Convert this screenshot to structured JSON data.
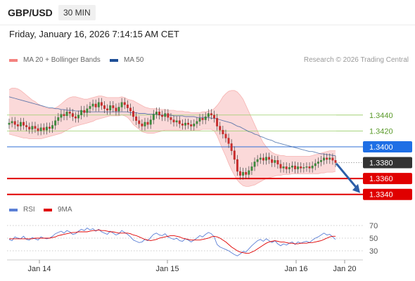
{
  "header": {
    "symbol": "GBP/USD",
    "timeframe": "30 MIN"
  },
  "timestamp": "Friday, January 16, 2026 7:14:15 AM CET",
  "legend": {
    "ma20": {
      "label": "MA 20 + Bollinger Bands",
      "color": "#f4827f"
    },
    "ma50": {
      "label": "MA 50",
      "color": "#1e4f97"
    }
  },
  "source": "Research © 2026 Trading Central",
  "rsi_legend": {
    "rsi": {
      "label": "RSI",
      "color": "#5b7fd6"
    },
    "ma9": {
      "label": "9MA",
      "color": "#e00000"
    }
  },
  "colors": {
    "up": "#3c8c3c",
    "down": "#cc2b2b",
    "wick": "#444444",
    "bb_fill": "#fbd9d9",
    "green_level": "#9ccf6c",
    "blue_level": "#2f6fd6",
    "red_level": "#e00000"
  },
  "chart_data": [
    {
      "type": "candlestick",
      "ylim": [
        1.333,
        1.35
      ],
      "x_ticks": [
        "Jan 14",
        "Jan 15",
        "Jan 16",
        "Jan 20"
      ],
      "levels": [
        {
          "value": 1.344,
          "label": "1.3440",
          "style": "green"
        },
        {
          "value": 1.342,
          "label": "1.3420",
          "style": "green"
        },
        {
          "value": 1.34,
          "label": "1.3400",
          "style": "blue"
        },
        {
          "value": 1.338,
          "label": "1.3380",
          "style": "current"
        },
        {
          "value": 1.336,
          "label": "1.3360",
          "style": "red"
        },
        {
          "value": 1.334,
          "label": "1.3340",
          "style": "red"
        }
      ],
      "close": [
        1.343,
        1.3432,
        1.3428,
        1.3426,
        1.3431,
        1.3427,
        1.3425,
        1.3422,
        1.3426,
        1.3423,
        1.342,
        1.3424,
        1.3421,
        1.3425,
        1.3423,
        1.3427,
        1.3433,
        1.3437,
        1.3441,
        1.3439,
        1.3444,
        1.3442,
        1.3438,
        1.3436,
        1.344,
        1.3446,
        1.3443,
        1.3448,
        1.3451,
        1.3454,
        1.345,
        1.3456,
        1.3452,
        1.3448,
        1.3446,
        1.3452,
        1.3449,
        1.3445,
        1.345,
        1.3456,
        1.3453,
        1.3449,
        1.3445,
        1.3438,
        1.3433,
        1.3429,
        1.3426,
        1.3431,
        1.3428,
        1.3434,
        1.3441,
        1.3444,
        1.344,
        1.3438,
        1.3442,
        1.3437,
        1.3434,
        1.3431,
        1.3433,
        1.3429,
        1.3427,
        1.343,
        1.3428,
        1.3426,
        1.3429,
        1.3432,
        1.3436,
        1.3434,
        1.3438,
        1.3442,
        1.344,
        1.3436,
        1.3426,
        1.3421,
        1.3416,
        1.3411,
        1.3404,
        1.3395,
        1.3384,
        1.3369,
        1.3364,
        1.3368,
        1.3365,
        1.337,
        1.3375,
        1.3381,
        1.3384,
        1.3386,
        1.3383,
        1.3387,
        1.3384,
        1.338,
        1.3383,
        1.3378,
        1.3373,
        1.3375,
        1.3372,
        1.3374,
        1.3376,
        1.3372,
        1.3375,
        1.3373,
        1.3374,
        1.3375,
        1.3373,
        1.3376,
        1.3379,
        1.3381,
        1.3383,
        1.3386,
        1.3384,
        1.3386,
        1.3383,
        1.338
      ],
      "bb_upper": [
        1.3472,
        1.3474,
        1.3474,
        1.3473,
        1.3471,
        1.3468,
        1.3465,
        1.3462,
        1.3459,
        1.3457,
        1.3454,
        1.3452,
        1.345,
        1.3449,
        1.3448,
        1.3448,
        1.3449,
        1.3451,
        1.3454,
        1.3457,
        1.346,
        1.3462,
        1.3463,
        1.3463,
        1.3462,
        1.3461,
        1.346,
        1.346,
        1.3461,
        1.3462,
        1.3463,
        1.3464,
        1.3464,
        1.3463,
        1.3462,
        1.3462,
        1.3462,
        1.3462,
        1.3462,
        1.3463,
        1.3462,
        1.346,
        1.3459,
        1.3458,
        1.3456,
        1.3454,
        1.3452,
        1.345,
        1.3449,
        1.3448,
        1.3448,
        1.3448,
        1.3447,
        1.3447,
        1.3447,
        1.3446,
        1.3446,
        1.3446,
        1.3445,
        1.3445,
        1.3445,
        1.3444,
        1.3444,
        1.3443,
        1.3443,
        1.3443,
        1.3443,
        1.3444,
        1.3444,
        1.3445,
        1.3446,
        1.3448,
        1.3452,
        1.3457,
        1.3463,
        1.3467,
        1.347,
        1.3471,
        1.3471,
        1.3469,
        1.3465,
        1.346,
        1.3452,
        1.3444,
        1.3436,
        1.3428,
        1.342,
        1.3412,
        1.3405,
        1.34,
        1.3396,
        1.3393,
        1.3391,
        1.339,
        1.3389,
        1.3389,
        1.3388,
        1.3388,
        1.3388,
        1.3388,
        1.3388,
        1.3388,
        1.3388,
        1.3388,
        1.3388,
        1.3389,
        1.339,
        1.3391,
        1.3392,
        1.3393,
        1.3394,
        1.3395,
        1.3395,
        1.3395
      ],
      "bb_lower": [
        1.3416,
        1.3415,
        1.3414,
        1.3413,
        1.3412,
        1.3411,
        1.3411,
        1.341,
        1.341,
        1.341,
        1.341,
        1.341,
        1.3411,
        1.3412,
        1.3413,
        1.3414,
        1.3415,
        1.3416,
        1.3417,
        1.3419,
        1.3421,
        1.3423,
        1.3425,
        1.3426,
        1.3427,
        1.3428,
        1.3429,
        1.343,
        1.3431,
        1.3432,
        1.3434,
        1.3435,
        1.3436,
        1.3437,
        1.3438,
        1.3439,
        1.3439,
        1.3439,
        1.3439,
        1.344,
        1.3439,
        1.3437,
        1.3433,
        1.3428,
        1.3425,
        1.3422,
        1.3419,
        1.3418,
        1.3417,
        1.3417,
        1.3417,
        1.3418,
        1.3419,
        1.342,
        1.3421,
        1.3421,
        1.3421,
        1.3421,
        1.3421,
        1.3421,
        1.342,
        1.342,
        1.342,
        1.342,
        1.3421,
        1.3421,
        1.3421,
        1.3422,
        1.3422,
        1.3422,
        1.3422,
        1.342,
        1.3414,
        1.3405,
        1.3396,
        1.3388,
        1.3379,
        1.3371,
        1.3364,
        1.3358,
        1.3354,
        1.3351,
        1.335,
        1.335,
        1.3351,
        1.3352,
        1.3354,
        1.3356,
        1.3358,
        1.336,
        1.3361,
        1.3362,
        1.3363,
        1.3364,
        1.3364,
        1.3365,
        1.3365,
        1.3365,
        1.3366,
        1.3366,
        1.3366,
        1.3366,
        1.3366,
        1.3366,
        1.3366,
        1.3366,
        1.3366,
        1.3366,
        1.3367,
        1.3367,
        1.3368,
        1.3368,
        1.3368,
        1.3369
      ],
      "ma50": [
        1.3463,
        1.3462,
        1.3461,
        1.346,
        1.3459,
        1.3458,
        1.3457,
        1.3456,
        1.3455,
        1.3454,
        1.3453,
        1.3452,
        1.3451,
        1.345,
        1.3449,
        1.3449,
        1.3448,
        1.3448,
        1.3447,
        1.3447,
        1.3446,
        1.3446,
        1.3446,
        1.3445,
        1.3445,
        1.3445,
        1.3444,
        1.3444,
        1.3444,
        1.3444,
        1.3444,
        1.3444,
        1.3444,
        1.3444,
        1.3444,
        1.3444,
        1.3444,
        1.3444,
        1.3444,
        1.3444,
        1.3444,
        1.3444,
        1.3443,
        1.3443,
        1.3443,
        1.3442,
        1.3442,
        1.3442,
        1.3441,
        1.3441,
        1.3441,
        1.3441,
        1.344,
        1.344,
        1.344,
        1.344,
        1.344,
        1.3439,
        1.3439,
        1.3439,
        1.3439,
        1.3438,
        1.3438,
        1.3438,
        1.3438,
        1.3437,
        1.3437,
        1.3437,
        1.3437,
        1.3437,
        1.3436,
        1.3436,
        1.3435,
        1.3434,
        1.3433,
        1.3432,
        1.3431,
        1.343,
        1.3428,
        1.3426,
        1.3425,
        1.3423,
        1.3421,
        1.3419,
        1.3418,
        1.3416,
        1.3415,
        1.3413,
        1.3412,
        1.341,
        1.3409,
        1.3408,
        1.3406,
        1.3405,
        1.3404,
        1.3403,
        1.3402,
        1.3401,
        1.34,
        1.3399,
        1.3398,
        1.3397,
        1.3396,
        1.3395,
        1.3394,
        1.3394,
        1.3393,
        1.3392,
        1.3391,
        1.3391,
        1.339,
        1.339,
        1.3389,
        1.3389
      ],
      "forecast": {
        "from": 1.3378,
        "to": 1.334
      }
    },
    {
      "type": "line",
      "title": "RSI",
      "ylim": [
        20,
        80
      ],
      "y_ticks": [
        "70",
        "50",
        "30"
      ],
      "rsi": [
        48,
        46,
        52,
        50,
        49,
        53,
        48,
        47,
        51,
        49,
        47,
        52,
        50,
        49,
        50,
        53,
        57,
        59,
        61,
        58,
        62,
        60,
        56,
        57,
        61,
        64,
        62,
        66,
        63,
        65,
        61,
        64,
        60,
        58,
        56,
        61,
        58,
        55,
        57,
        62,
        59,
        56,
        52,
        47,
        45,
        43,
        44,
        48,
        46,
        51,
        56,
        58,
        55,
        54,
        57,
        52,
        50,
        48,
        50,
        46,
        45,
        49,
        47,
        44,
        47,
        50,
        54,
        52,
        56,
        59,
        57,
        52,
        40,
        36,
        34,
        32,
        30,
        27,
        24,
        22,
        25,
        29,
        28,
        33,
        38,
        42,
        46,
        48,
        45,
        49,
        46,
        43,
        46,
        41,
        38,
        41,
        39,
        42,
        44,
        40,
        44,
        42,
        44,
        45,
        43,
        47,
        50,
        52,
        55,
        58,
        55,
        56,
        52,
        48
      ],
      "ma9": [
        49,
        49,
        49,
        49,
        49,
        49,
        49,
        49,
        49,
        50,
        50,
        50,
        50,
        50,
        50,
        51,
        52,
        54,
        55,
        56,
        57,
        58,
        59,
        59,
        60,
        60,
        60,
        60,
        61,
        62,
        62,
        63,
        62,
        62,
        61,
        60,
        60,
        59,
        58,
        58,
        58,
        58,
        57,
        55,
        54,
        52,
        50,
        48,
        47,
        46,
        47,
        48,
        50,
        51,
        52,
        53,
        54,
        54,
        53,
        52,
        50,
        49,
        48,
        47,
        47,
        47,
        47,
        48,
        49,
        50,
        52,
        53,
        52,
        50,
        47,
        44,
        40,
        36,
        33,
        30,
        28,
        27,
        26,
        26,
        28,
        30,
        33,
        36,
        39,
        42,
        44,
        45,
        46,
        45,
        44,
        44,
        43,
        42,
        42,
        41,
        41,
        42,
        42,
        42,
        43,
        43,
        44,
        45,
        46,
        48,
        50,
        52,
        53,
        53
      ]
    }
  ]
}
